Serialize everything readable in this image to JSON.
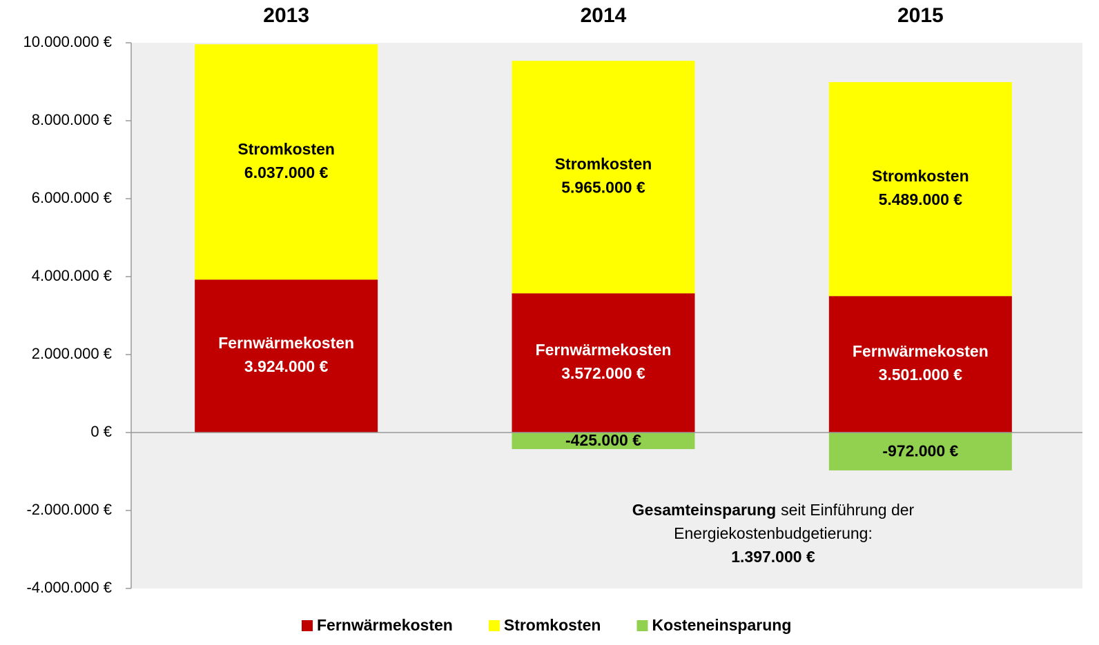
{
  "chart_data": {
    "type": "stacked_bar",
    "categories": [
      "2013",
      "2014",
      "2015"
    ],
    "series": [
      {
        "name": "Fernwärmekosten",
        "color": "#c00000",
        "label_color": "#ffffff",
        "values": [
          3924000,
          3572000,
          3501000
        ],
        "value_labels": [
          "3.924.000 €",
          "3.572.000 €",
          "3.501.000 €"
        ],
        "show_name": true
      },
      {
        "name": "Stromkosten",
        "color": "#ffff00",
        "label_color": "#000000",
        "values": [
          6037000,
          5965000,
          5489000
        ],
        "value_labels": [
          "6.037.000 €",
          "5.965.000 €",
          "5.489.000 €"
        ],
        "show_name": true
      },
      {
        "name": "Kosteneinsparung",
        "color": "#92d050",
        "label_color": "#000000",
        "values": [
          null,
          -425000,
          -972000
        ],
        "value_labels": [
          null,
          "-425.000 €",
          "-972.000 €"
        ],
        "show_name": false
      }
    ],
    "ylim": [
      -4000000,
      10000000
    ],
    "yticks": [
      {
        "value": -4000000,
        "label": "-4.000.000 €"
      },
      {
        "value": -2000000,
        "label": "-2.000.000 €"
      },
      {
        "value": 0,
        "label": "0 €"
      },
      {
        "value": 2000000,
        "label": "2.000.000 €"
      },
      {
        "value": 4000000,
        "label": "4.000.000 €"
      },
      {
        "value": 6000000,
        "label": "6.000.000 €"
      },
      {
        "value": 8000000,
        "label": "8.000.000 €"
      },
      {
        "value": 10000000,
        "label": "10.000.000 €"
      }
    ],
    "annotation": {
      "bold": "Gesamteinsparung",
      "lines": [
        "seit Einführung der",
        "Energiekostenbudgetierung:"
      ],
      "total": "1.397.000 €"
    },
    "legend": "bottom"
  }
}
